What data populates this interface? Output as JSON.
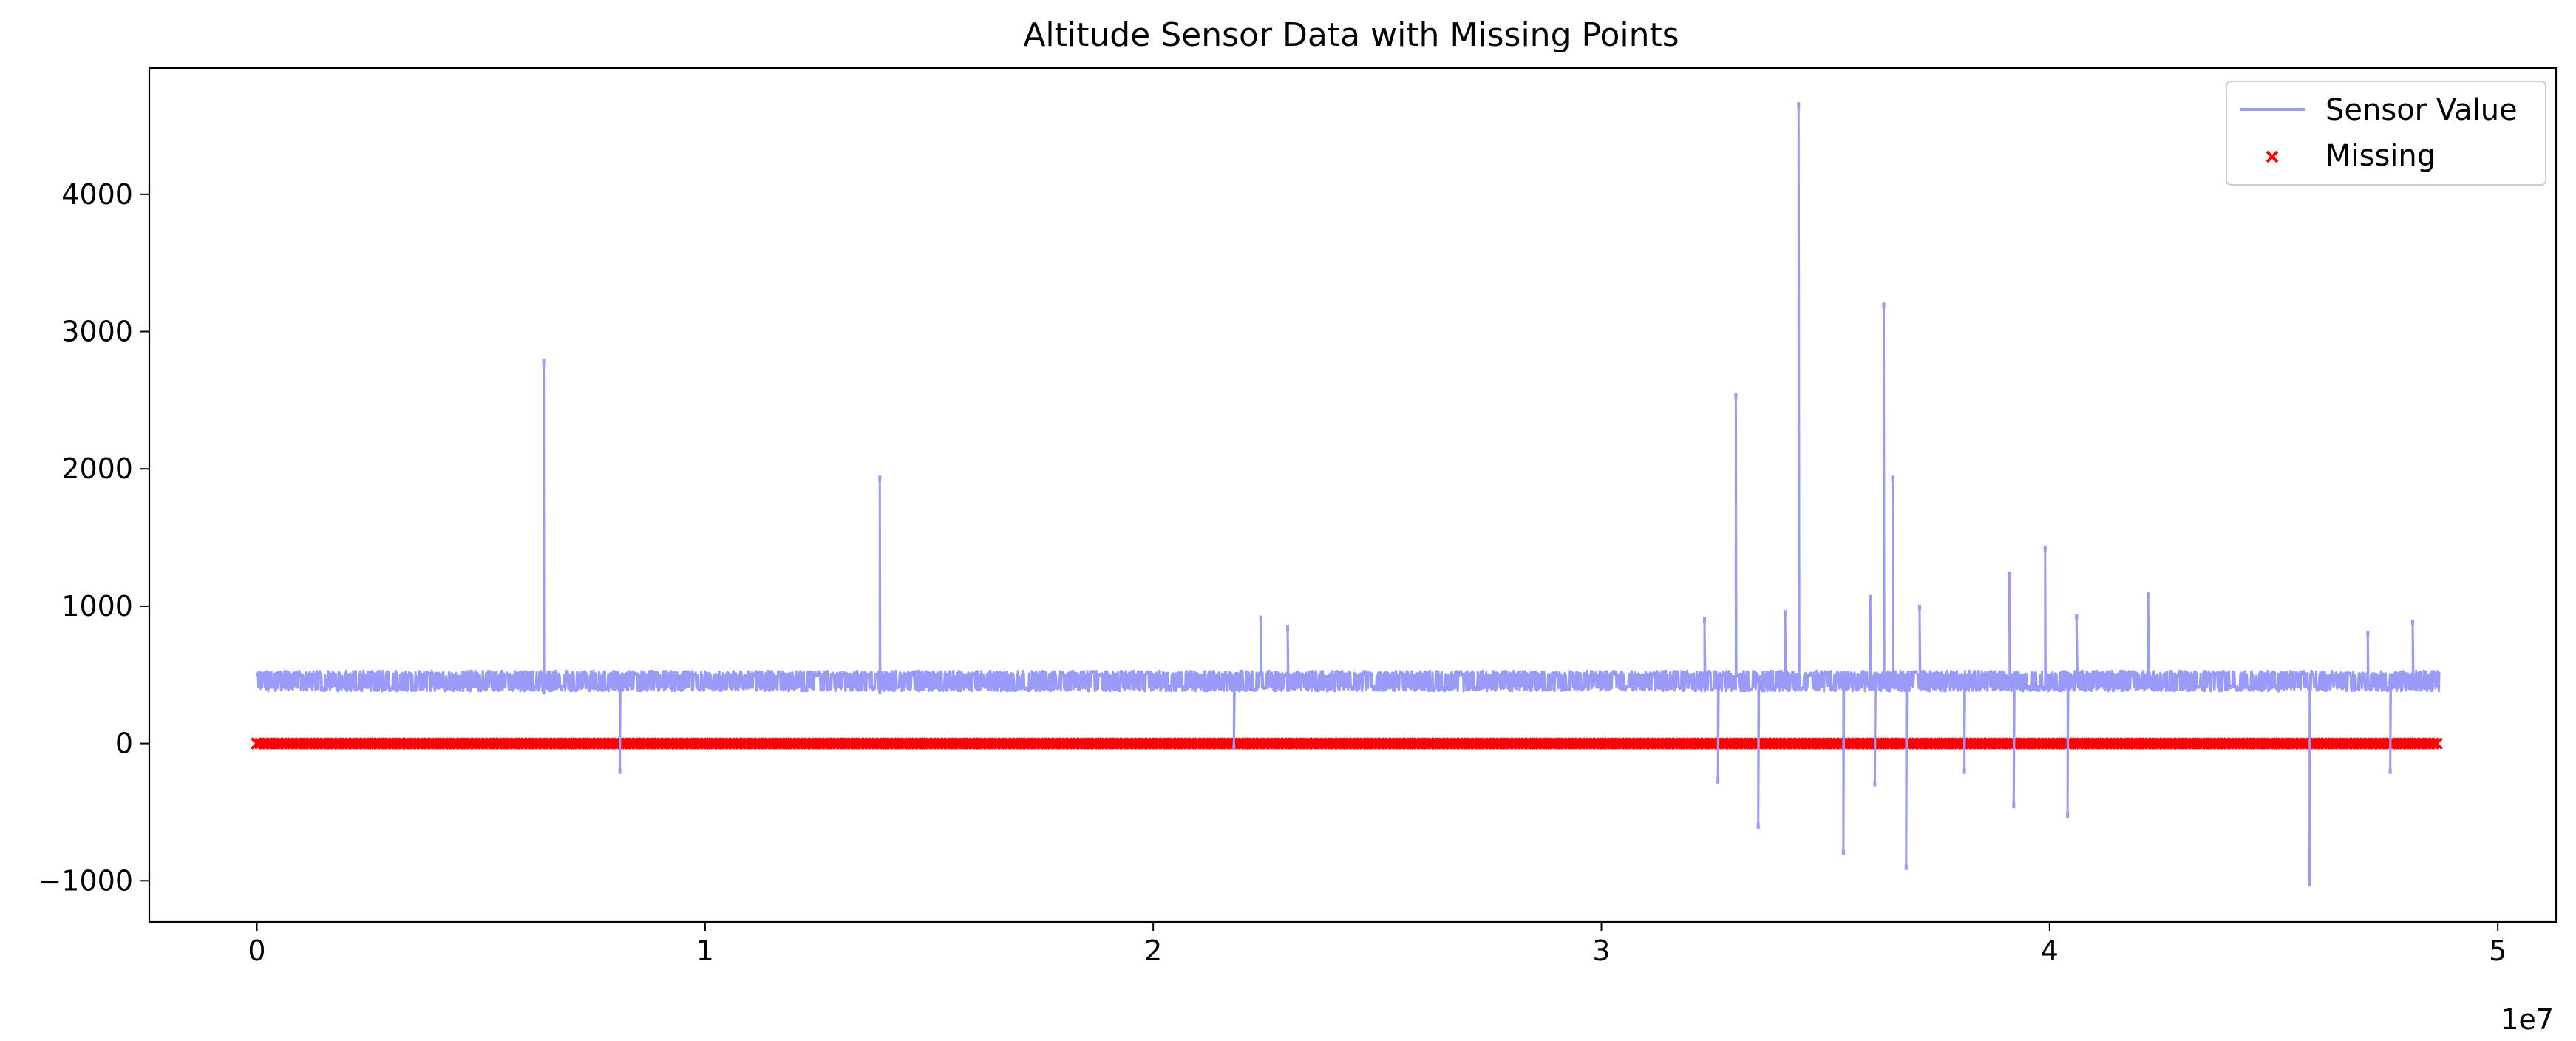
{
  "chart_data": {
    "type": "line",
    "title": "Altitude Sensor Data with Missing Points",
    "xlabel": "",
    "ylabel": "",
    "x_offset_label": "1e7",
    "xlim": [
      -2400000,
      51300000
    ],
    "ylim": [
      -1300,
      4920
    ],
    "x_ticks": [
      0,
      10000000,
      20000000,
      30000000,
      40000000,
      50000000
    ],
    "x_tick_labels": [
      "0",
      "1",
      "2",
      "3",
      "4",
      "5"
    ],
    "y_ticks": [
      -1000,
      0,
      1000,
      2000,
      3000,
      4000
    ],
    "y_tick_labels": [
      "−1000",
      "0",
      "1000",
      "2000",
      "3000",
      "4000"
    ],
    "grid": false,
    "legend": {
      "position": "top-right",
      "entries": [
        {
          "label": "Sensor Value",
          "marker": "line",
          "color": "#9a9af8"
        },
        {
          "label": "Missing",
          "marker": "x",
          "color": "#ff0000"
        }
      ]
    },
    "series": [
      {
        "name": "Sensor Value",
        "color": "#9a9af8",
        "baseline_band": {
          "x_range": [
            0,
            48700000
          ],
          "typical_low": 380,
          "typical_high": 530,
          "mean": 450
        },
        "notable_points": [
          {
            "x": 6400000,
            "y": 2780
          },
          {
            "x": 6400000,
            "y": 380
          },
          {
            "x": 8100000,
            "y": -200
          },
          {
            "x": 13900000,
            "y": 1930
          },
          {
            "x": 13900000,
            "y": 380
          },
          {
            "x": 21800000,
            "y": -30
          },
          {
            "x": 22400000,
            "y": 910
          },
          {
            "x": 23000000,
            "y": 840
          },
          {
            "x": 32300000,
            "y": 900
          },
          {
            "x": 32600000,
            "y": -270
          },
          {
            "x": 33000000,
            "y": 2530
          },
          {
            "x": 33500000,
            "y": -600
          },
          {
            "x": 34100000,
            "y": 950
          },
          {
            "x": 34400000,
            "y": 4650
          },
          {
            "x": 35400000,
            "y": -790
          },
          {
            "x": 36000000,
            "y": 1060
          },
          {
            "x": 36100000,
            "y": -290
          },
          {
            "x": 36300000,
            "y": 3190
          },
          {
            "x": 36500000,
            "y": 1930
          },
          {
            "x": 36800000,
            "y": -900
          },
          {
            "x": 37100000,
            "y": 990
          },
          {
            "x": 38100000,
            "y": -200
          },
          {
            "x": 39100000,
            "y": 1230
          },
          {
            "x": 39200000,
            "y": -450
          },
          {
            "x": 39900000,
            "y": 1420
          },
          {
            "x": 40400000,
            "y": -520
          },
          {
            "x": 40600000,
            "y": 920
          },
          {
            "x": 42200000,
            "y": 1080
          },
          {
            "x": 45800000,
            "y": -1020
          },
          {
            "x": 47100000,
            "y": 800
          },
          {
            "x": 47600000,
            "y": -200
          },
          {
            "x": 48100000,
            "y": 880
          }
        ]
      },
      {
        "name": "Missing",
        "color": "#ff0000",
        "marker": "x",
        "x_range": [
          0,
          48700000
        ],
        "y": 0
      }
    ]
  }
}
